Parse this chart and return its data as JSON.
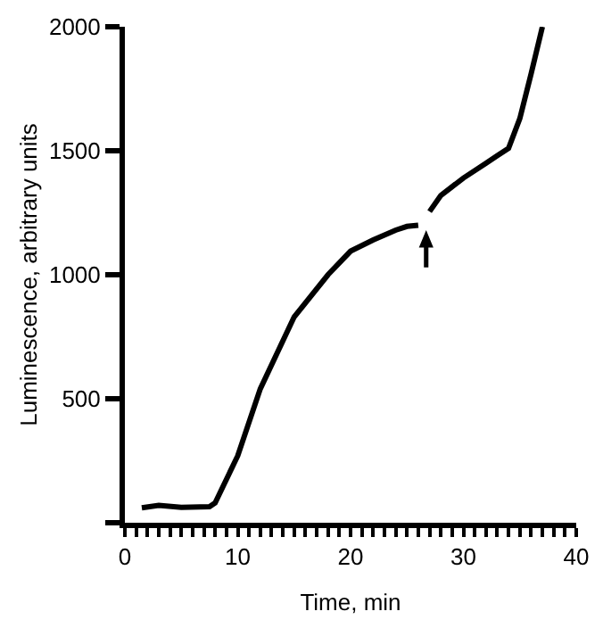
{
  "chart_data": {
    "type": "line",
    "xlabel": "Time, min",
    "ylabel": "Luminescence, arbitrary units",
    "x": [
      1.5,
      3,
      5,
      7.5,
      8,
      10,
      12,
      15,
      18,
      20,
      22,
      24,
      25,
      26,
      26.5,
      27,
      28,
      30,
      32,
      33,
      34,
      35,
      36,
      37
    ],
    "series": [
      {
        "color": "#000000",
        "values": [
          60,
          70,
          62,
          65,
          80,
          270,
          540,
          830,
          1000,
          1095,
          1140,
          1180,
          1195,
          1200,
          null,
          1255,
          1320,
          1390,
          1450,
          1480,
          1510,
          1630,
          1810,
          2000
        ]
      }
    ],
    "xlim": [
      0,
      40
    ],
    "ylim": [
      0,
      2000
    ],
    "xticks": [
      0,
      {
        "value": 1,
        "label": null
      },
      {
        "value": 2,
        "label": null
      },
      {
        "value": 3,
        "label": null
      },
      {
        "value": 4,
        "label": null
      },
      {
        "value": 5,
        "label": null
      },
      {
        "value": 6,
        "label": null
      },
      {
        "value": 7,
        "label": null
      },
      {
        "value": 8,
        "label": null
      },
      {
        "value": 9,
        "label": null
      },
      10,
      {
        "value": 11,
        "label": null
      },
      {
        "value": 12,
        "label": null
      },
      {
        "value": 13,
        "label": null
      },
      {
        "value": 14,
        "label": null
      },
      {
        "value": 15,
        "label": null
      },
      {
        "value": 16,
        "label": null
      },
      {
        "value": 17,
        "label": null
      },
      {
        "value": 18,
        "label": null
      },
      {
        "value": 19,
        "label": null
      },
      20,
      {
        "value": 21,
        "label": null
      },
      {
        "value": 22,
        "label": null
      },
      {
        "value": 23,
        "label": null
      },
      {
        "value": 24,
        "label": null
      },
      {
        "value": 25,
        "label": null
      },
      {
        "value": 26,
        "label": null
      },
      {
        "value": 27,
        "label": null
      },
      {
        "value": 28,
        "label": null
      },
      {
        "value": 29,
        "label": null
      },
      30,
      {
        "value": 31,
        "label": null
      },
      {
        "value": 32,
        "label": null
      },
      {
        "value": 33,
        "label": null
      },
      {
        "value": 34,
        "label": null
      },
      {
        "value": 35,
        "label": null
      },
      {
        "value": 36,
        "label": null
      },
      {
        "value": 37,
        "label": null
      },
      {
        "value": 38,
        "label": null
      },
      {
        "value": 39,
        "label": null
      },
      40
    ],
    "yticks": [
      {
        "value": 0,
        "label": null
      },
      500,
      1000,
      1500,
      2000
    ],
    "marker": "none",
    "line_style": "solid",
    "legend": false
  }
}
